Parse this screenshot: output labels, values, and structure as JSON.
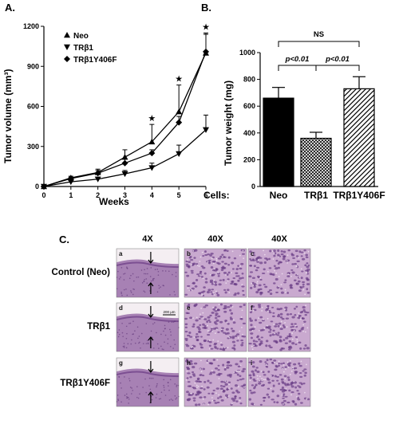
{
  "panels": {
    "A": "A.",
    "B": "B.",
    "C": "C."
  },
  "chart_data": [
    {
      "type": "line",
      "panel": "A.",
      "xlabel": "Weeks",
      "ylabel": "Tumor volume (mm³)",
      "x": [
        0,
        1,
        2,
        3,
        4,
        5,
        6
      ],
      "xlim": [
        0,
        6
      ],
      "ylim": [
        0,
        1200
      ],
      "yticks": [
        0,
        300,
        600,
        900,
        1200
      ],
      "legend": "top-left",
      "series": [
        {
          "name": "Neo",
          "marker": "triangle-up",
          "values": [
            0,
            65,
            105,
            220,
            335,
            560,
            1000
          ],
          "err": [
            0,
            12,
            25,
            55,
            130,
            200,
            150
          ]
        },
        {
          "name": "TRβ1",
          "marker": "triangle-down",
          "values": [
            0,
            35,
            55,
            95,
            140,
            245,
            425
          ],
          "err": [
            0,
            8,
            15,
            25,
            35,
            65,
            110
          ]
        },
        {
          "name": "TRβ1Y406F",
          "marker": "diamond",
          "values": [
            0,
            60,
            100,
            175,
            250,
            480,
            1010
          ],
          "err": [
            0,
            10,
            20,
            30,
            25,
            45,
            130
          ]
        }
      ],
      "annotations": [
        {
          "x": 4,
          "text": "★"
        },
        {
          "x": 5,
          "text": "★"
        },
        {
          "x": 6,
          "text": "★"
        }
      ]
    },
    {
      "type": "bar",
      "panel": "B.",
      "ylabel": "Tumor weight (mg)",
      "xlabel": "Cells:",
      "categories": [
        "Neo",
        "TRβ1",
        "TRβ1Y406F"
      ],
      "values": [
        660,
        360,
        730
      ],
      "err": [
        80,
        45,
        90
      ],
      "fills": [
        "solid",
        "crosshatch",
        "diagonal"
      ],
      "ylim": [
        0,
        1000
      ],
      "yticks": [
        0,
        200,
        400,
        600,
        800,
        1000
      ],
      "comparisons": [
        {
          "pair": [
            0,
            2
          ],
          "text": "NS"
        },
        {
          "pair": [
            0,
            1
          ],
          "text": "p<0.01"
        },
        {
          "pair": [
            1,
            2
          ],
          "text": "p<0.01"
        }
      ]
    }
  ],
  "histology": {
    "columns": [
      "4X",
      "40X",
      "40X"
    ],
    "rows": [
      "Control (Neo)",
      "TRβ1",
      "TRβ1Y406F"
    ],
    "letters": [
      [
        "a",
        "b",
        "c"
      ],
      [
        "d",
        "e",
        "f"
      ],
      [
        "g",
        "h",
        "i"
      ]
    ],
    "scale_bar": "200 μm"
  }
}
